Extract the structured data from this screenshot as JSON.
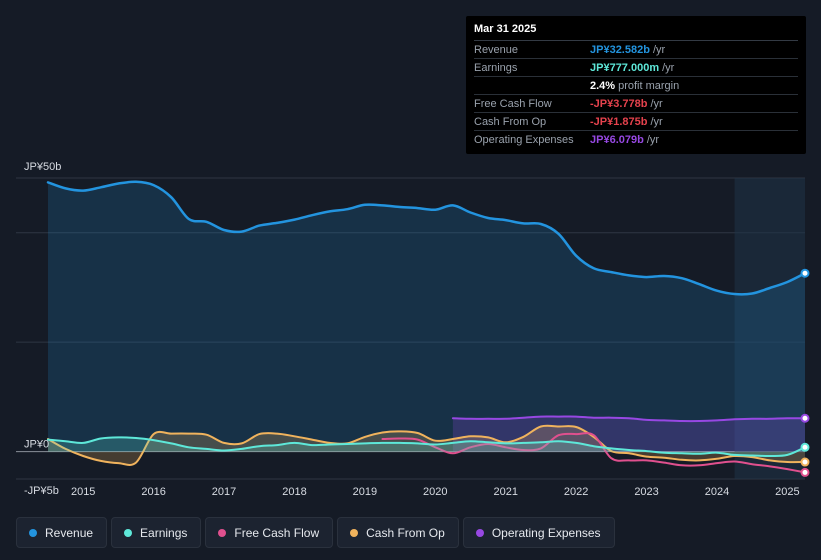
{
  "chart_data": {
    "type": "line",
    "x_start": 2014.5,
    "x_end": 2025.25,
    "ylim": [
      -5,
      50
    ],
    "y_labels": [
      "JP¥50b",
      "JP¥0",
      "-JP¥5b"
    ],
    "y_label_values": [
      50,
      0,
      -5
    ],
    "x_ticks": [
      "2015",
      "2016",
      "2017",
      "2018",
      "2019",
      "2020",
      "2021",
      "2022",
      "2023",
      "2024",
      "2025"
    ],
    "x_tick_values": [
      2015,
      2016,
      2017,
      2018,
      2019,
      2020,
      2021,
      2022,
      2023,
      2024,
      2025
    ],
    "past_region_start": 2024.25,
    "series": [
      {
        "name": "Revenue",
        "color": "#2394df",
        "fill": true,
        "points": [
          [
            2014.5,
            49.2
          ],
          [
            2014.75,
            48.1
          ],
          [
            2015.0,
            47.7
          ],
          [
            2015.25,
            48.3
          ],
          [
            2015.5,
            49.0
          ],
          [
            2015.75,
            49.3
          ],
          [
            2016.0,
            48.7
          ],
          [
            2016.25,
            46.5
          ],
          [
            2016.5,
            42.5
          ],
          [
            2016.75,
            42.0
          ],
          [
            2017.0,
            40.5
          ],
          [
            2017.25,
            40.2
          ],
          [
            2017.5,
            41.3
          ],
          [
            2017.75,
            41.8
          ],
          [
            2018.0,
            42.4
          ],
          [
            2018.25,
            43.2
          ],
          [
            2018.5,
            43.9
          ],
          [
            2018.75,
            44.3
          ],
          [
            2019.0,
            45.1
          ],
          [
            2019.25,
            45.0
          ],
          [
            2019.5,
            44.7
          ],
          [
            2019.75,
            44.5
          ],
          [
            2020.0,
            44.2
          ],
          [
            2020.25,
            45.0
          ],
          [
            2020.5,
            43.7
          ],
          [
            2020.75,
            42.7
          ],
          [
            2021.0,
            42.3
          ],
          [
            2021.25,
            41.7
          ],
          [
            2021.5,
            41.6
          ],
          [
            2021.75,
            39.8
          ],
          [
            2022.0,
            35.8
          ],
          [
            2022.25,
            33.5
          ],
          [
            2022.5,
            32.8
          ],
          [
            2022.75,
            32.2
          ],
          [
            2023.0,
            31.9
          ],
          [
            2023.25,
            32.1
          ],
          [
            2023.5,
            31.7
          ],
          [
            2023.75,
            30.6
          ],
          [
            2024.0,
            29.4
          ],
          [
            2024.25,
            28.8
          ],
          [
            2024.5,
            28.9
          ],
          [
            2024.75,
            29.9
          ],
          [
            2025.0,
            31.0
          ],
          [
            2025.25,
            32.6
          ]
        ]
      },
      {
        "name": "Earnings",
        "color": "#5ee8d9",
        "fill": true,
        "points": [
          [
            2014.5,
            2.2
          ],
          [
            2014.75,
            1.9
          ],
          [
            2015.0,
            1.6
          ],
          [
            2015.25,
            2.4
          ],
          [
            2015.5,
            2.6
          ],
          [
            2015.75,
            2.5
          ],
          [
            2016.0,
            2.1
          ],
          [
            2016.25,
            1.5
          ],
          [
            2016.5,
            0.8
          ],
          [
            2016.75,
            0.5
          ],
          [
            2017.0,
            0.2
          ],
          [
            2017.25,
            0.5
          ],
          [
            2017.5,
            1.0
          ],
          [
            2017.75,
            1.2
          ],
          [
            2018.0,
            1.6
          ],
          [
            2018.25,
            1.2
          ],
          [
            2018.5,
            1.3
          ],
          [
            2018.75,
            1.4
          ],
          [
            2019.0,
            1.5
          ],
          [
            2019.25,
            1.6
          ],
          [
            2019.5,
            1.6
          ],
          [
            2019.75,
            1.5
          ],
          [
            2020.0,
            1.3
          ],
          [
            2020.25,
            1.6
          ],
          [
            2020.5,
            1.9
          ],
          [
            2020.75,
            1.7
          ],
          [
            2021.0,
            1.5
          ],
          [
            2021.25,
            1.6
          ],
          [
            2021.5,
            1.7
          ],
          [
            2021.75,
            1.9
          ],
          [
            2022.0,
            1.6
          ],
          [
            2022.25,
            1.0
          ],
          [
            2022.5,
            0.6
          ],
          [
            2022.75,
            0.3
          ],
          [
            2023.0,
            0.1
          ],
          [
            2023.25,
            -0.2
          ],
          [
            2023.5,
            -0.3
          ],
          [
            2023.75,
            -0.4
          ],
          [
            2024.0,
            -0.2
          ],
          [
            2024.25,
            -0.6
          ],
          [
            2024.5,
            -0.7
          ],
          [
            2024.75,
            -0.8
          ],
          [
            2025.0,
            -0.6
          ],
          [
            2025.25,
            0.8
          ]
        ]
      },
      {
        "name": "Free Cash Flow",
        "color": "#e0508e",
        "fill": false,
        "points": [
          [
            2019.25,
            2.3
          ],
          [
            2019.5,
            2.4
          ],
          [
            2019.75,
            2.2
          ],
          [
            2020.0,
            0.8
          ],
          [
            2020.25,
            -0.3
          ],
          [
            2020.5,
            0.8
          ],
          [
            2020.75,
            1.4
          ],
          [
            2021.0,
            0.8
          ],
          [
            2021.25,
            0.3
          ],
          [
            2021.5,
            0.6
          ],
          [
            2021.75,
            3.0
          ],
          [
            2022.0,
            3.2
          ],
          [
            2022.25,
            3.0
          ],
          [
            2022.5,
            -1.2
          ],
          [
            2022.75,
            -1.6
          ],
          [
            2023.0,
            -1.6
          ],
          [
            2023.25,
            -2.0
          ],
          [
            2023.5,
            -2.5
          ],
          [
            2023.75,
            -2.5
          ],
          [
            2024.0,
            -2.1
          ],
          [
            2024.25,
            -1.8
          ],
          [
            2024.5,
            -2.3
          ],
          [
            2024.75,
            -2.7
          ],
          [
            2025.0,
            -3.2
          ],
          [
            2025.25,
            -3.8
          ]
        ]
      },
      {
        "name": "Cash From Op",
        "color": "#f0b35d",
        "fill": true,
        "points": [
          [
            2014.5,
            2.3
          ],
          [
            2014.75,
            0.5
          ],
          [
            2015.0,
            -0.8
          ],
          [
            2015.25,
            -1.7
          ],
          [
            2015.5,
            -2.1
          ],
          [
            2015.75,
            -2.0
          ],
          [
            2016.0,
            3.2
          ],
          [
            2016.25,
            3.3
          ],
          [
            2016.5,
            3.3
          ],
          [
            2016.75,
            3.1
          ],
          [
            2017.0,
            1.6
          ],
          [
            2017.25,
            1.5
          ],
          [
            2017.5,
            3.2
          ],
          [
            2017.75,
            3.3
          ],
          [
            2018.0,
            2.8
          ],
          [
            2018.25,
            2.2
          ],
          [
            2018.5,
            1.6
          ],
          [
            2018.75,
            1.5
          ],
          [
            2019.0,
            2.7
          ],
          [
            2019.25,
            3.5
          ],
          [
            2019.5,
            3.7
          ],
          [
            2019.75,
            3.4
          ],
          [
            2020.0,
            2.0
          ],
          [
            2020.25,
            2.3
          ],
          [
            2020.5,
            2.8
          ],
          [
            2020.75,
            2.6
          ],
          [
            2021.0,
            1.7
          ],
          [
            2021.25,
            2.7
          ],
          [
            2021.5,
            4.6
          ],
          [
            2021.75,
            4.6
          ],
          [
            2022.0,
            4.5
          ],
          [
            2022.25,
            2.7
          ],
          [
            2022.5,
            0.1
          ],
          [
            2022.75,
            -0.3
          ],
          [
            2023.0,
            -0.9
          ],
          [
            2023.25,
            -1.1
          ],
          [
            2023.5,
            -1.5
          ],
          [
            2023.75,
            -1.6
          ],
          [
            2024.0,
            -1.3
          ],
          [
            2024.25,
            -0.8
          ],
          [
            2024.5,
            -1.0
          ],
          [
            2024.75,
            -1.6
          ],
          [
            2025.0,
            -1.9
          ],
          [
            2025.25,
            -1.9
          ]
        ]
      },
      {
        "name": "Operating Expenses",
        "color": "#9748e3",
        "fill": true,
        "points": [
          [
            2020.25,
            6.1
          ],
          [
            2020.5,
            6.0
          ],
          [
            2020.75,
            6.0
          ],
          [
            2021.0,
            6.0
          ],
          [
            2021.25,
            6.2
          ],
          [
            2021.5,
            6.4
          ],
          [
            2021.75,
            6.4
          ],
          [
            2022.0,
            6.4
          ],
          [
            2022.25,
            6.2
          ],
          [
            2022.5,
            6.2
          ],
          [
            2022.75,
            6.1
          ],
          [
            2023.0,
            5.8
          ],
          [
            2023.25,
            5.7
          ],
          [
            2023.5,
            5.6
          ],
          [
            2023.75,
            5.6
          ],
          [
            2024.0,
            5.7
          ],
          [
            2024.25,
            5.9
          ],
          [
            2024.5,
            6.0
          ],
          [
            2024.75,
            6.0
          ],
          [
            2025.0,
            6.1
          ],
          [
            2025.25,
            6.1
          ]
        ]
      }
    ]
  },
  "tooltip": {
    "date": "Mar 31 2025",
    "rows": [
      {
        "label": "Revenue",
        "value": "JP¥32.582b",
        "unit": "/yr",
        "color": "#2394df"
      },
      {
        "label": "Earnings",
        "value": "JP¥777.000m",
        "unit": "/yr",
        "color": "#5ee8d9"
      },
      {
        "label": "",
        "value": "2.4%",
        "unit": "profit margin",
        "color": "#ffffff"
      },
      {
        "label": "Free Cash Flow",
        "value": "-JP¥3.778b",
        "unit": "/yr",
        "color": "#e5424d"
      },
      {
        "label": "Cash From Op",
        "value": "-JP¥1.875b",
        "unit": "/yr",
        "color": "#e5424d"
      },
      {
        "label": "Operating Expenses",
        "value": "JP¥6.079b",
        "unit": "/yr",
        "color": "#9748e3"
      }
    ]
  },
  "legend": [
    {
      "label": "Revenue",
      "color": "#2394df"
    },
    {
      "label": "Earnings",
      "color": "#5ee8d9"
    },
    {
      "label": "Free Cash Flow",
      "color": "#e0508e"
    },
    {
      "label": "Cash From Op",
      "color": "#f0b35d"
    },
    {
      "label": "Operating Expenses",
      "color": "#9748e3"
    }
  ]
}
